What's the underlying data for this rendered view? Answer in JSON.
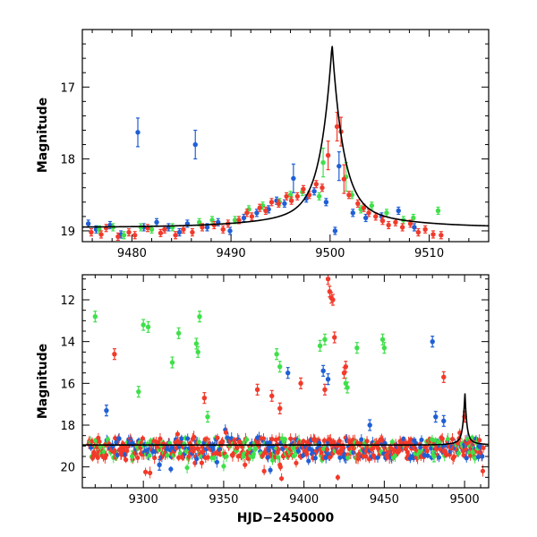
{
  "colors": {
    "blue": "#1f5fd6",
    "green": "#3fe04a",
    "red": "#f23a2a",
    "model": "#000000"
  },
  "chart_data": [
    {
      "type": "scatter",
      "title": "",
      "xlabel": "",
      "ylabel": "Magnitude",
      "xlim": [
        9475,
        9516
      ],
      "ylim": [
        19.15,
        16.2
      ],
      "y_inverted": true,
      "xticks": [
        9480,
        9490,
        9500,
        9510
      ],
      "yticks": [
        17,
        18,
        19
      ],
      "model_curve": {
        "name": "model",
        "baseline": 18.95,
        "peak_x": 9500.2,
        "peak_mag": 16.4,
        "shape": "cusp"
      },
      "series": [
        {
          "name": "blue",
          "color": "#1f5fd6",
          "points": [
            [
              9475.6,
              18.9
            ],
            [
              9476.4,
              18.98
            ],
            [
              9477.8,
              18.92
            ],
            [
              9478.9,
              19.05
            ],
            [
              9480.6,
              17.63
            ],
            [
              9481.2,
              18.95
            ],
            [
              9482.5,
              18.88
            ],
            [
              9483.7,
              18.95
            ],
            [
              9484.8,
              19.02
            ],
            [
              9485.6,
              18.9
            ],
            [
              9486.4,
              17.8
            ],
            [
              9487.6,
              18.95
            ],
            [
              9488.7,
              18.88
            ],
            [
              9489.9,
              19.0
            ],
            [
              9491.3,
              18.82
            ],
            [
              9492.6,
              18.75
            ],
            [
              9493.8,
              18.7
            ],
            [
              9494.6,
              18.58
            ],
            [
              9495.4,
              18.62
            ],
            [
              9496.3,
              18.27
            ],
            [
              9497.6,
              18.55
            ],
            [
              9498.4,
              18.45
            ],
            [
              9499.6,
              18.6
            ],
            [
              9500.5,
              19.0
            ],
            [
              9500.9,
              18.1
            ],
            [
              9502.3,
              18.75
            ],
            [
              9503.6,
              18.82
            ],
            [
              9505.2,
              18.8
            ],
            [
              9506.9,
              18.72
            ],
            [
              9508.5,
              18.95
            ]
          ]
        },
        {
          "name": "green",
          "color": "#3fe04a",
          "points": [
            [
              9476.7,
              18.98
            ],
            [
              9478.1,
              18.95
            ],
            [
              9479.2,
              19.06
            ],
            [
              9480.9,
              18.95
            ],
            [
              9482.0,
              18.98
            ],
            [
              9484.1,
              18.95
            ],
            [
              9486.8,
              18.88
            ],
            [
              9488.1,
              18.85
            ],
            [
              9490.4,
              18.85
            ],
            [
              9491.8,
              18.7
            ],
            [
              9493.2,
              18.65
            ],
            [
              9494.9,
              18.6
            ],
            [
              9496.0,
              18.5
            ],
            [
              9497.2,
              18.46
            ],
            [
              9498.9,
              18.52
            ],
            [
              9499.3,
              18.05
            ],
            [
              9501.6,
              18.25
            ],
            [
              9502.2,
              18.5
            ],
            [
              9503.1,
              18.7
            ],
            [
              9504.2,
              18.65
            ],
            [
              9505.7,
              18.75
            ],
            [
              9507.4,
              18.85
            ],
            [
              9508.4,
              18.82
            ],
            [
              9510.9,
              18.72
            ]
          ]
        },
        {
          "name": "red",
          "color": "#f23a2a",
          "points": [
            [
              9475.9,
              19.02
            ],
            [
              9476.9,
              19.05
            ],
            [
              9477.4,
              18.96
            ],
            [
              9478.6,
              19.08
            ],
            [
              9479.7,
              19.02
            ],
            [
              9480.3,
              19.06
            ],
            [
              9481.6,
              18.96
            ],
            [
              9482.9,
              19.03
            ],
            [
              9483.3,
              18.98
            ],
            [
              9484.4,
              19.06
            ],
            [
              9485.2,
              18.98
            ],
            [
              9486.1,
              19.02
            ],
            [
              9487.1,
              18.95
            ],
            [
              9488.3,
              18.92
            ],
            [
              9489.2,
              18.98
            ],
            [
              9489.7,
              18.9
            ],
            [
              9490.8,
              18.85
            ],
            [
              9491.6,
              18.75
            ],
            [
              9492.1,
              18.8
            ],
            [
              9492.9,
              18.68
            ],
            [
              9493.5,
              18.72
            ],
            [
              9494.1,
              18.6
            ],
            [
              9494.8,
              18.62
            ],
            [
              9495.6,
              18.52
            ],
            [
              9496.1,
              18.58
            ],
            [
              9496.7,
              18.52
            ],
            [
              9497.3,
              18.42
            ],
            [
              9497.9,
              18.5
            ],
            [
              9498.6,
              18.35
            ],
            [
              9499.2,
              18.4
            ],
            [
              9499.8,
              17.95
            ],
            [
              9500.7,
              17.55
            ],
            [
              9501.1,
              17.62
            ],
            [
              9501.4,
              18.28
            ],
            [
              9501.9,
              18.5
            ],
            [
              9502.8,
              18.62
            ],
            [
              9503.4,
              18.68
            ],
            [
              9503.9,
              18.75
            ],
            [
              9504.6,
              18.8
            ],
            [
              9505.3,
              18.86
            ],
            [
              9505.9,
              18.92
            ],
            [
              9506.6,
              18.88
            ],
            [
              9507.3,
              18.95
            ],
            [
              9508.1,
              18.9
            ],
            [
              9508.9,
              19.02
            ],
            [
              9509.6,
              18.98
            ],
            [
              9510.4,
              19.05
            ],
            [
              9511.2,
              19.06
            ]
          ]
        }
      ]
    },
    {
      "type": "scatter",
      "title": "",
      "xlabel": "HJD−2450000",
      "ylabel": "Magnitude",
      "xlim": [
        9262,
        9515
      ],
      "ylim": [
        21.0,
        10.8
      ],
      "y_inverted": true,
      "xticks": [
        9300,
        9350,
        9400,
        9450,
        9500
      ],
      "yticks": [
        12,
        14,
        16,
        18,
        20
      ],
      "model_curve": {
        "name": "model",
        "baseline": 18.95,
        "peak_x": 9500.2,
        "peak_mag": 16.4,
        "shape": "cusp"
      },
      "baseline_band": {
        "x_start": 9266,
        "x_end": 9512,
        "mag_center": 19.1,
        "mag_spread": 0.5
      },
      "series": [
        {
          "name": "green",
          "color": "#3fe04a",
          "points": [
            [
              9270,
              12.8
            ],
            [
              9293,
              19.5
            ],
            [
              9297,
              16.4
            ],
            [
              9300,
              13.2
            ],
            [
              9303,
              13.3
            ],
            [
              9318,
              15.0
            ],
            [
              9322,
              13.6
            ],
            [
              9333,
              14.1
            ],
            [
              9334,
              14.5
            ],
            [
              9335,
              12.8
            ],
            [
              9340,
              17.6
            ],
            [
              9383,
              14.6
            ],
            [
              9385,
              15.2
            ],
            [
              9410,
              14.2
            ],
            [
              9413,
              13.9
            ],
            [
              9426,
              16.0
            ],
            [
              9427,
              16.2
            ],
            [
              9433,
              14.3
            ],
            [
              9449,
              13.9
            ],
            [
              9450,
              14.3
            ],
            [
              9481,
              19.5
            ],
            [
              9505,
              19.3
            ]
          ]
        },
        {
          "name": "red",
          "color": "#f23a2a",
          "points": [
            [
              9282,
              14.6
            ],
            [
              9338,
              16.7
            ],
            [
              9371,
              16.3
            ],
            [
              9380,
              16.6
            ],
            [
              9385,
              17.2
            ],
            [
              9398,
              16.0
            ],
            [
              9413,
              16.3
            ],
            [
              9415,
              11.0
            ],
            [
              9416,
              11.6
            ],
            [
              9417,
              11.9
            ],
            [
              9418,
              12.0
            ],
            [
              9419,
              13.8
            ],
            [
              9425,
              15.5
            ],
            [
              9426,
              15.2
            ],
            [
              9487,
              15.7
            ],
            [
              9500,
              17.6
            ]
          ]
        },
        {
          "name": "blue",
          "color": "#1f5fd6",
          "points": [
            [
              9277,
              17.3
            ],
            [
              9310,
              19.9
            ],
            [
              9390,
              15.5
            ],
            [
              9412,
              15.4
            ],
            [
              9415,
              15.8
            ],
            [
              9441,
              18.0
            ],
            [
              9480,
              14.0
            ],
            [
              9482,
              17.6
            ],
            [
              9487,
              17.8
            ]
          ]
        }
      ]
    }
  ]
}
